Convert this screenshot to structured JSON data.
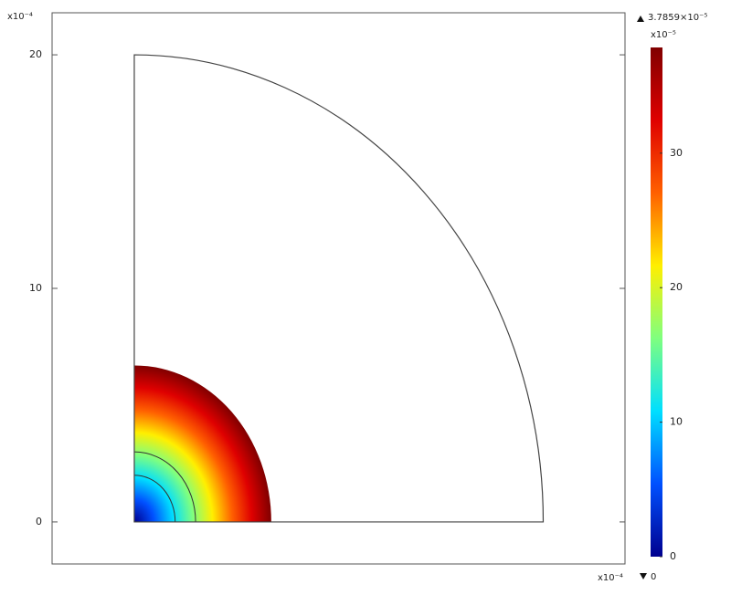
{
  "chart_data": {
    "type": "surface",
    "y_multiplier": "x10⁻⁴",
    "x_multiplier": "x10⁻⁴",
    "xlim": [
      -4.02,
      24.0
    ],
    "ylim": [
      -1.8,
      21.8
    ],
    "yticks": [
      0,
      10,
      20
    ],
    "domain_radius": 20,
    "surface_radius": 6.7,
    "surface_max": 37.859,
    "contour_radii": [
      2,
      3
    ],
    "colorbar": {
      "clim": [
        0,
        37.859
      ],
      "ticks": [
        0,
        10,
        20,
        30
      ],
      "exponent": "x10⁻⁵",
      "max_label": "3.7859×10⁻⁵",
      "min_label": "0",
      "colors": [
        "#00008f",
        "#0050ff",
        "#00dfff",
        "#7fff7f",
        "#ffef00",
        "#ff6000",
        "#df0000",
        "#800000"
      ]
    }
  }
}
